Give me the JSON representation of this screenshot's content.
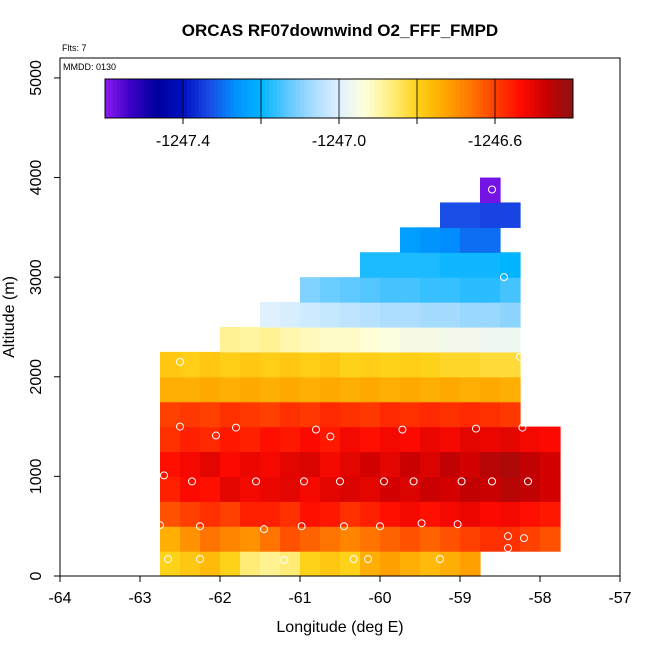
{
  "chart_data": {
    "type": "heatmap",
    "title": "ORCAS RF07downwind O2_FFF_FMPD",
    "note_flights": "Flts: 7",
    "note_mmdd": "MMDD: 0130",
    "xlabel": "Longitude (deg E)",
    "ylabel": "Altitude (m)",
    "xlim": [
      -64,
      -57
    ],
    "ylim": [
      0,
      5200
    ],
    "x_ticks": [
      -64,
      -63,
      -62,
      -61,
      -60,
      -59,
      -58,
      -57
    ],
    "y_ticks": [
      0,
      1000,
      2000,
      3000,
      4000,
      5000
    ],
    "grid": false,
    "cell_width_deg": 0.25,
    "cell_height_m": 250,
    "colorbar": {
      "range": [
        -1247.6,
        -1246.4
      ],
      "tick_values": [
        -1247.4,
        -1247.0,
        -1246.6
      ],
      "tick_labels": [
        "-1247.4",
        "-1247.0",
        "-1246.6"
      ],
      "colors": [
        "#8b1cf2",
        "#3a00c6",
        "#00009e",
        "#0010c0",
        "#1a4ae6",
        "#0090ff",
        "#00b4ff",
        "#5cc8ff",
        "#a8dcff",
        "#dff1ff",
        "#ffffdc",
        "#ffef80",
        "#ffd21a",
        "#ffaa00",
        "#ff7a00",
        "#ff4000",
        "#ff0a00",
        "#c80000",
        "#8a1414"
      ],
      "location": "top"
    },
    "rows": [
      {
        "alt": 125,
        "lon_start": -62.75,
        "values": [
          -1246.8,
          -1246.78,
          -1246.76,
          -1246.8,
          -1246.86,
          -1246.88,
          -1246.86,
          -1246.8,
          -1246.78,
          -1246.8,
          -1246.74,
          -1246.72,
          -1246.74,
          -1246.76,
          -1246.74,
          -1246.72
        ]
      },
      {
        "alt": 375,
        "lon_start": -62.75,
        "values": [
          -1246.74,
          -1246.7,
          -1246.66,
          -1246.68,
          -1246.7,
          -1246.66,
          -1246.62,
          -1246.64,
          -1246.66,
          -1246.68,
          -1246.66,
          -1246.64,
          -1246.62,
          -1246.64,
          -1246.62,
          -1246.6,
          -1246.58,
          -1246.58,
          -1246.6,
          -1246.62
        ]
      },
      {
        "alt": 625,
        "lon_start": -62.75,
        "values": [
          -1246.62,
          -1246.6,
          -1246.58,
          -1246.6,
          -1246.56,
          -1246.56,
          -1246.58,
          -1246.54,
          -1246.55,
          -1246.58,
          -1246.56,
          -1246.54,
          -1246.52,
          -1246.54,
          -1246.52,
          -1246.51,
          -1246.53,
          -1246.52,
          -1246.54,
          -1246.55
        ]
      },
      {
        "alt": 875,
        "lon_start": -62.75,
        "values": [
          -1246.56,
          -1246.53,
          -1246.54,
          -1246.5,
          -1246.52,
          -1246.51,
          -1246.5,
          -1246.52,
          -1246.5,
          -1246.49,
          -1246.5,
          -1246.48,
          -1246.49,
          -1246.47,
          -1246.48,
          -1246.46,
          -1246.47,
          -1246.45,
          -1246.46,
          -1246.48
        ]
      },
      {
        "alt": 1125,
        "lon_start": -62.75,
        "values": [
          -1246.54,
          -1246.52,
          -1246.5,
          -1246.53,
          -1246.51,
          -1246.52,
          -1246.5,
          -1246.49,
          -1246.52,
          -1246.5,
          -1246.48,
          -1246.5,
          -1246.47,
          -1246.49,
          -1246.46,
          -1246.48,
          -1246.45,
          -1246.44,
          -1246.46,
          -1246.48
        ]
      },
      {
        "alt": 1375,
        "lon_start": -62.75,
        "values": [
          -1246.58,
          -1246.56,
          -1246.57,
          -1246.55,
          -1246.56,
          -1246.54,
          -1246.55,
          -1246.53,
          -1246.55,
          -1246.52,
          -1246.54,
          -1246.52,
          -1246.53,
          -1246.51,
          -1246.52,
          -1246.5,
          -1246.51,
          -1246.5,
          -1246.52,
          -1246.53
        ]
      },
      {
        "alt": 1625,
        "lon_start": -62.75,
        "values": [
          -1246.6,
          -1246.59,
          -1246.6,
          -1246.58,
          -1246.59,
          -1246.6,
          -1246.58,
          -1246.59,
          -1246.57,
          -1246.58,
          -1246.59,
          -1246.57,
          -1246.58,
          -1246.57,
          -1246.58,
          -1246.57,
          -1246.58,
          -1246.59
        ]
      },
      {
        "alt": 1875,
        "lon_start": -62.75,
        "values": [
          -1246.74,
          -1246.74,
          -1246.73,
          -1246.74,
          -1246.73,
          -1246.74,
          -1246.73,
          -1246.74,
          -1246.73,
          -1246.74,
          -1246.73,
          -1246.74,
          -1246.73,
          -1246.74,
          -1246.73,
          -1246.74,
          -1246.73,
          -1246.74
        ]
      },
      {
        "alt": 2125,
        "lon_start": -62.75,
        "values": [
          -1246.78,
          -1246.79,
          -1246.78,
          -1246.79,
          -1246.78,
          -1246.79,
          -1246.78,
          -1246.79,
          -1246.78,
          -1246.8,
          -1246.79,
          -1246.8,
          -1246.79,
          -1246.8,
          -1246.81,
          -1246.81,
          -1246.82,
          -1246.82
        ]
      },
      {
        "alt": 2375,
        "lon_start": -62.0,
        "values": [
          -1246.88,
          -1246.89,
          -1246.88,
          -1246.9,
          -1246.91,
          -1246.92,
          -1246.92,
          -1246.93,
          -1246.94,
          -1246.95,
          -1246.95,
          -1246.96,
          -1246.96,
          -1246.97,
          -1246.97
        ]
      },
      {
        "alt": 2625,
        "lon_start": -61.5,
        "values": [
          -1247.0,
          -1247.01,
          -1247.02,
          -1247.03,
          -1247.04,
          -1247.05,
          -1247.06,
          -1247.06,
          -1247.07,
          -1247.07,
          -1247.08,
          -1247.08,
          -1247.09
        ]
      },
      {
        "alt": 2875,
        "lon_start": -61.0,
        "values": [
          -1247.1,
          -1247.12,
          -1247.13,
          -1247.14,
          -1247.15,
          -1247.15,
          -1247.16,
          -1247.16,
          -1247.17,
          -1247.17,
          -1247.15
        ]
      },
      {
        "alt": 3125,
        "lon_start": -60.25,
        "values": [
          -1247.18,
          -1247.18,
          -1247.18,
          -1247.18,
          -1247.19,
          -1247.19,
          -1247.19,
          -1247.2
        ]
      },
      {
        "alt": 3375,
        "lon_start": -59.75,
        "values": [
          -1247.24,
          -1247.26,
          -1247.27,
          -1247.3,
          -1247.3
        ]
      },
      {
        "alt": 3625,
        "lon_start": -59.25,
        "values": [
          -1247.33,
          -1247.33,
          -1247.34,
          -1247.34
        ]
      },
      {
        "alt": 3875,
        "lon_start": -58.75,
        "values": [
          -1247.58
        ]
      }
    ],
    "points": [
      {
        "lon": -62.5,
        "alt": 2150
      },
      {
        "lon": -58.25,
        "alt": 2200
      },
      {
        "lon": -58.45,
        "alt": 3000
      },
      {
        "lon": -58.6,
        "alt": 3880
      },
      {
        "lon": -62.5,
        "alt": 1500
      },
      {
        "lon": -62.05,
        "alt": 1410
      },
      {
        "lon": -61.8,
        "alt": 1490
      },
      {
        "lon": -60.8,
        "alt": 1470
      },
      {
        "lon": -60.62,
        "alt": 1400
      },
      {
        "lon": -59.72,
        "alt": 1470
      },
      {
        "lon": -58.8,
        "alt": 1480
      },
      {
        "lon": -58.22,
        "alt": 1490
      },
      {
        "lon": -62.7,
        "alt": 1010
      },
      {
        "lon": -62.35,
        "alt": 950
      },
      {
        "lon": -61.55,
        "alt": 950
      },
      {
        "lon": -60.95,
        "alt": 950
      },
      {
        "lon": -60.5,
        "alt": 950
      },
      {
        "lon": -59.95,
        "alt": 950
      },
      {
        "lon": -59.58,
        "alt": 950
      },
      {
        "lon": -58.98,
        "alt": 950
      },
      {
        "lon": -58.6,
        "alt": 950
      },
      {
        "lon": -58.15,
        "alt": 950
      },
      {
        "lon": -62.75,
        "alt": 510
      },
      {
        "lon": -62.25,
        "alt": 500
      },
      {
        "lon": -61.45,
        "alt": 470
      },
      {
        "lon": -60.98,
        "alt": 500
      },
      {
        "lon": -60.45,
        "alt": 500
      },
      {
        "lon": -60.0,
        "alt": 500
      },
      {
        "lon": -59.48,
        "alt": 530
      },
      {
        "lon": -59.03,
        "alt": 520
      },
      {
        "lon": -58.4,
        "alt": 400
      },
      {
        "lon": -58.2,
        "alt": 380
      },
      {
        "lon": -58.4,
        "alt": 280
      },
      {
        "lon": -62.65,
        "alt": 170
      },
      {
        "lon": -62.25,
        "alt": 170
      },
      {
        "lon": -61.2,
        "alt": 160
      },
      {
        "lon": -60.33,
        "alt": 170
      },
      {
        "lon": -60.15,
        "alt": 170
      },
      {
        "lon": -59.25,
        "alt": 170
      }
    ]
  }
}
